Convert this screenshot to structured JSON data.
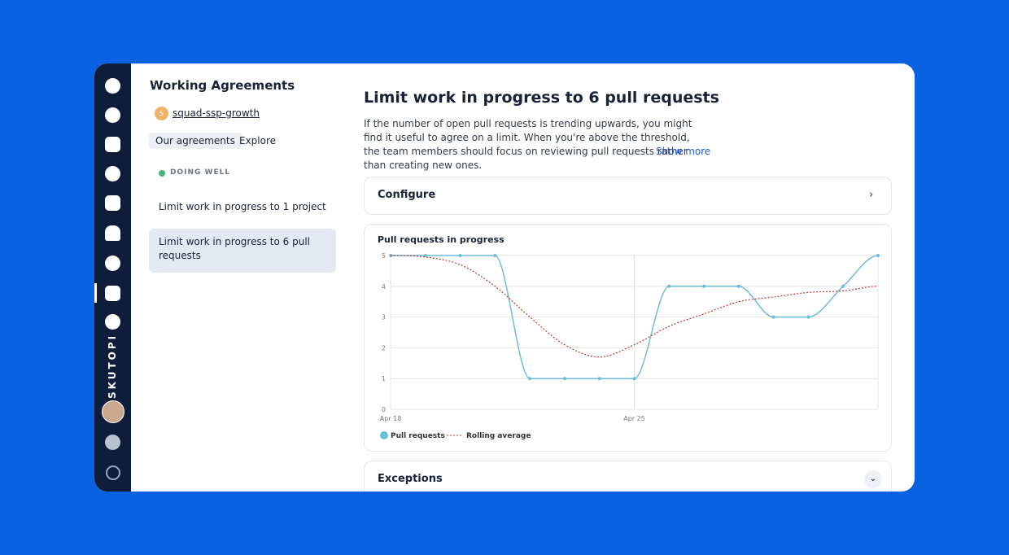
{
  "brand": "SKUTOPI",
  "sidebar_title": "Working Agreements",
  "team": {
    "initial": "S",
    "name": "squad-ssp-growth"
  },
  "tabs": [
    "Our agreements",
    "Explore"
  ],
  "status": "DOING WELL",
  "agreements": [
    "Limit work in progress to 1 project",
    "Limit work in progress to 6 pull requests"
  ],
  "main": {
    "title": "Limit work in progress to 6 pull requests",
    "description": "If the number of open pull requests is trending upwards, you might find it useful to agree on a limit. When you're above the threshold, the team members should focus on reviewing pull requests rather than creating new ones.",
    "show_more": "Show more",
    "configure": "Configure",
    "exceptions": "Exceptions"
  },
  "chart_data": {
    "type": "line",
    "title": "Pull requests in progress",
    "categories": [
      "Apr 18",
      null,
      null,
      null,
      null,
      null,
      null,
      "Apr 25",
      null,
      null,
      null,
      null,
      null,
      null,
      null
    ],
    "series": [
      {
        "name": "Pull requests",
        "color": "#6bbcd8",
        "values": [
          5,
          5,
          5,
          5,
          1,
          1,
          1,
          1,
          4,
          4,
          4,
          3,
          3,
          4,
          5
        ]
      },
      {
        "name": "Rolling average",
        "color": "#c0392b",
        "values": [
          5,
          4.95,
          4.7,
          4.0,
          3.0,
          2.1,
          1.7,
          2.1,
          2.7,
          3.1,
          3.5,
          3.65,
          3.8,
          3.85,
          4.0
        ]
      }
    ],
    "ylim": [
      0,
      5
    ],
    "yticks": [
      0,
      1,
      2,
      3,
      4,
      5
    ],
    "grid": true
  }
}
